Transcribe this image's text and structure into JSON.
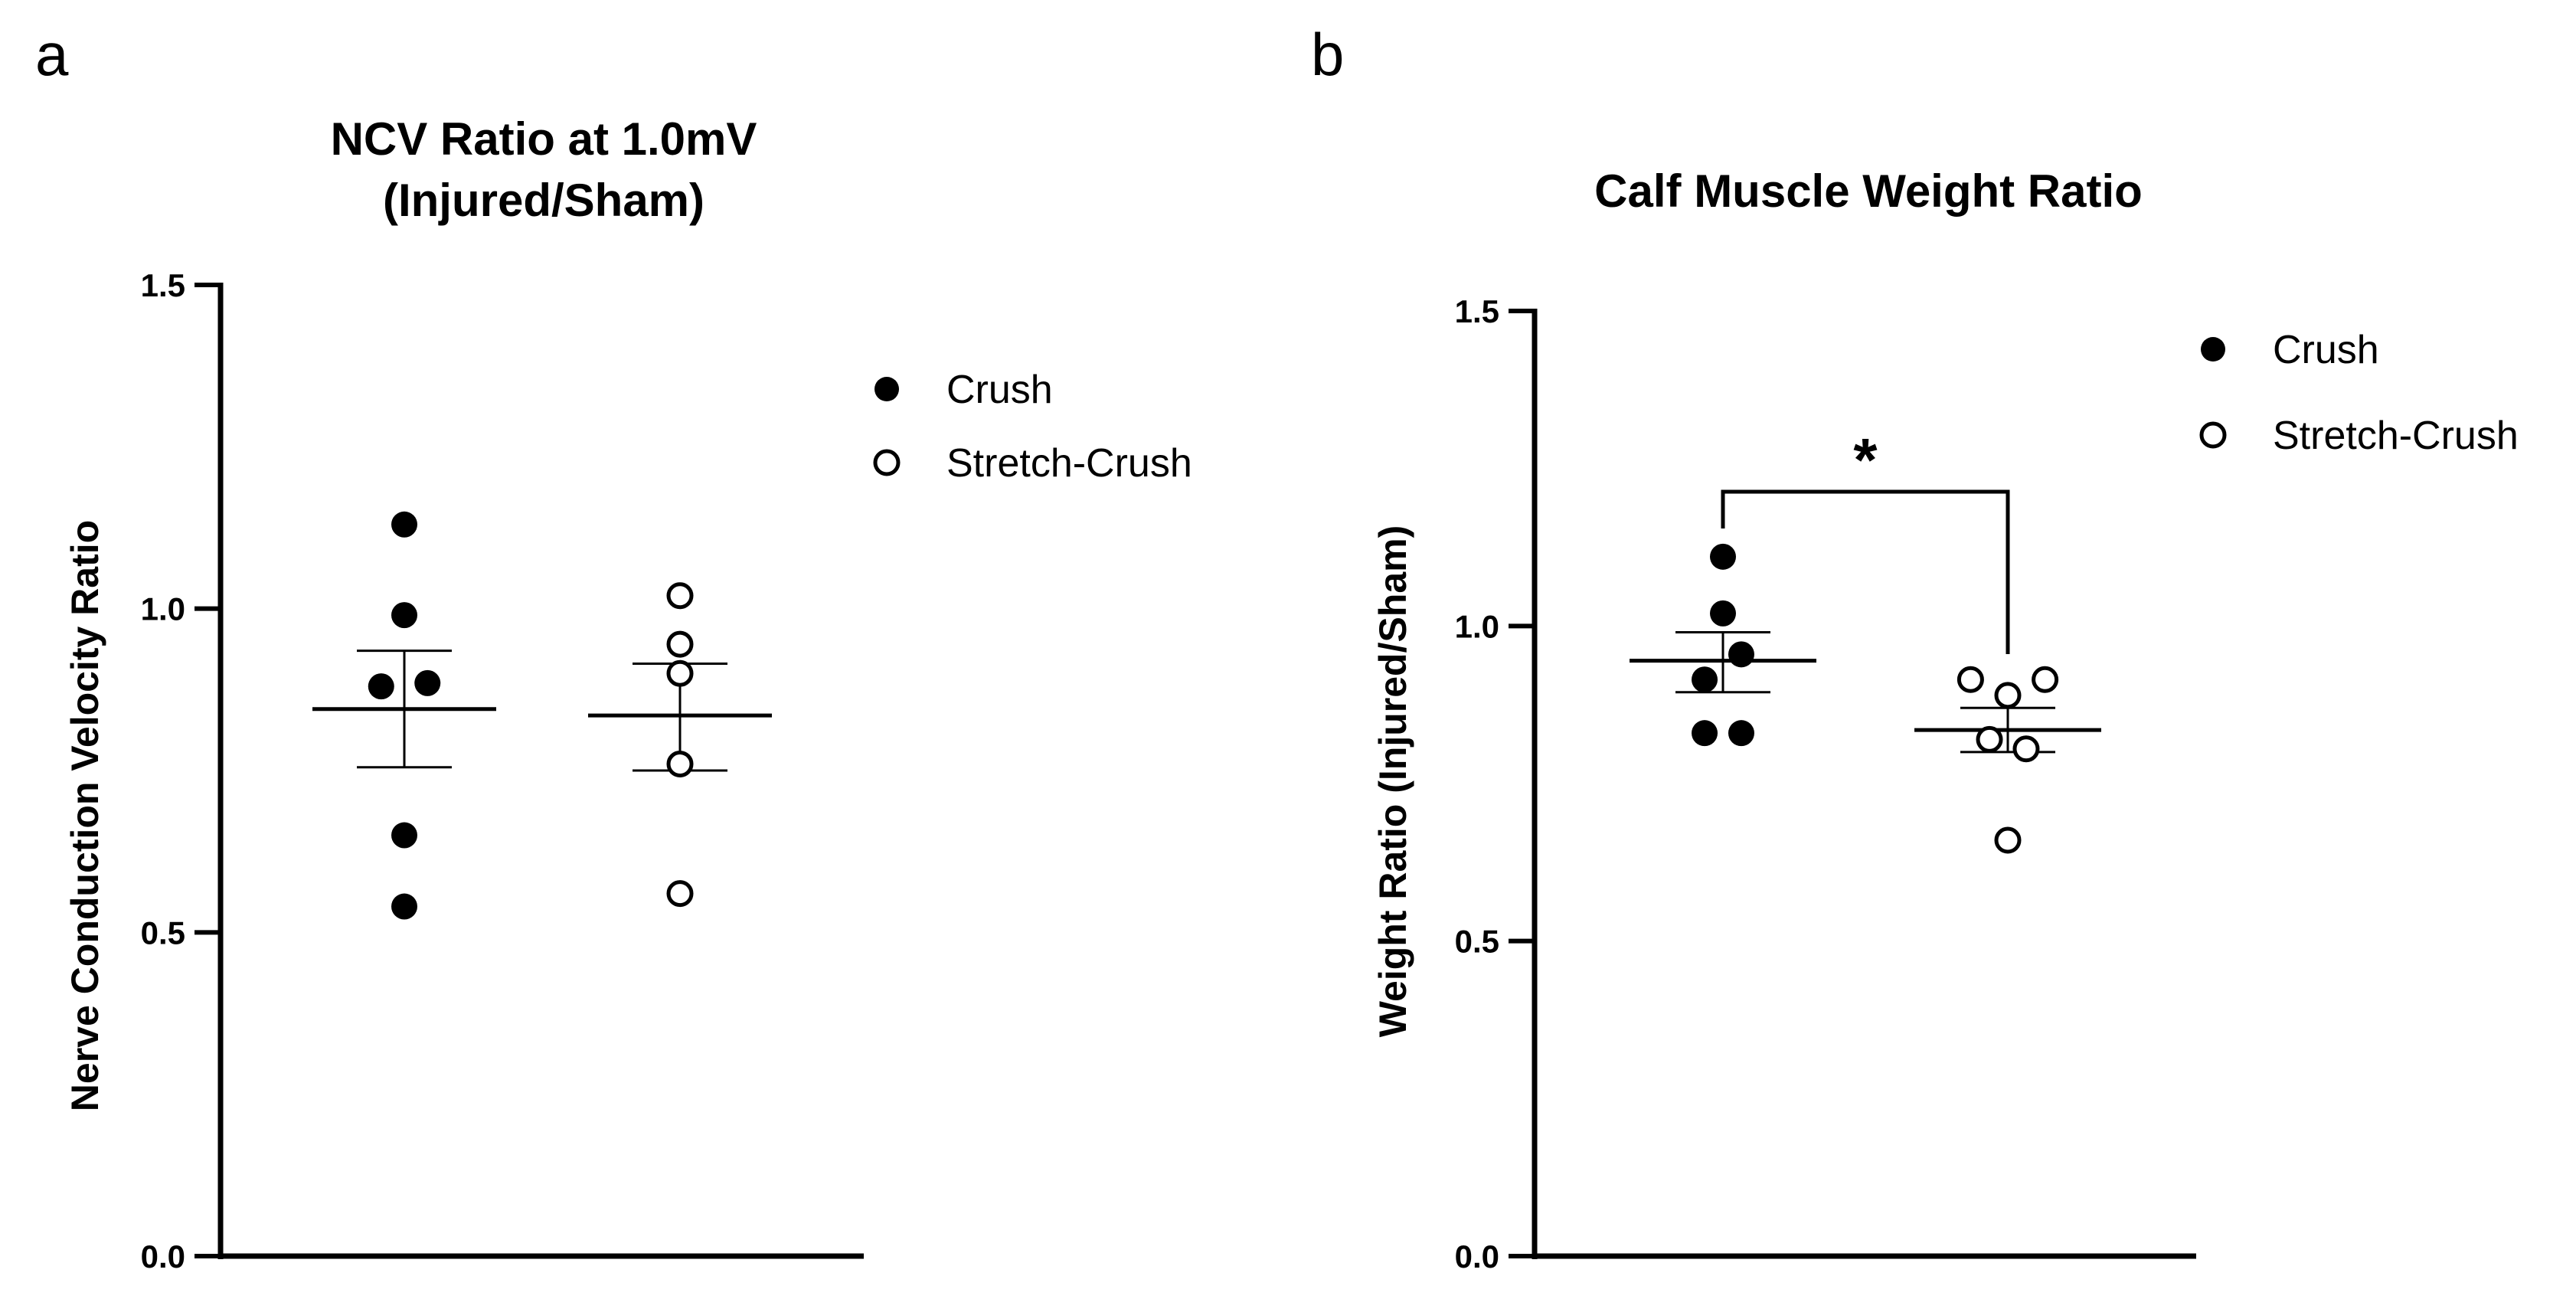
{
  "panels": [
    {
      "letter": "a"
    },
    {
      "letter": "b"
    }
  ],
  "chart_data": [
    {
      "type": "scatter",
      "title_lines": [
        "NCV Ratio at 1.0mV",
        "(Injured/Sham)"
      ],
      "xlabel": "",
      "ylabel": "Nerve Conduction Velocity Ratio",
      "ylim": [
        0,
        1.5
      ],
      "yticks": [
        {
          "value": 0.0,
          "label": "0.0"
        },
        {
          "value": 0.5,
          "label": "0.5"
        },
        {
          "value": 1.0,
          "label": "1.0"
        },
        {
          "value": 1.5,
          "label": "1.5"
        }
      ],
      "grid": false,
      "legend_position": "top-right",
      "series": [
        {
          "name": "Crush",
          "marker": "filled-circle",
          "color": "#000000",
          "mean": 0.845,
          "sem_low": 0.755,
          "sem_high": 0.935,
          "points": [
            {
              "value": 1.13,
              "offset": 0
            },
            {
              "value": 0.99,
              "offset": 0
            },
            {
              "value": 0.88,
              "offset": -0.35
            },
            {
              "value": 0.885,
              "offset": 0.35
            },
            {
              "value": 0.65,
              "offset": 0
            },
            {
              "value": 0.54,
              "offset": 0
            }
          ]
        },
        {
          "name": "Stretch-Crush",
          "marker": "open-circle",
          "color": "#000000",
          "mean": 0.835,
          "sem_low": 0.75,
          "sem_high": 0.915,
          "points": [
            {
              "value": 1.02,
              "offset": 0
            },
            {
              "value": 0.945,
              "offset": 0
            },
            {
              "value": 0.9,
              "offset": 0
            },
            {
              "value": 0.76,
              "offset": 0
            },
            {
              "value": 0.56,
              "offset": 0
            }
          ]
        }
      ],
      "annotations": []
    },
    {
      "type": "scatter",
      "title_lines": [
        "Calf Muscle Weight Ratio"
      ],
      "xlabel": "",
      "ylabel": "Weight Ratio (Injured/Sham)",
      "ylim": [
        0,
        1.5
      ],
      "yticks": [
        {
          "value": 0.0,
          "label": "0.0"
        },
        {
          "value": 0.5,
          "label": "0.5"
        },
        {
          "value": 1.0,
          "label": "1.0"
        },
        {
          "value": 1.5,
          "label": "1.5"
        }
      ],
      "grid": false,
      "legend_position": "top-right",
      "series": [
        {
          "name": "Crush",
          "marker": "filled-circle",
          "color": "#000000",
          "mean": 0.945,
          "sem_low": 0.895,
          "sem_high": 0.99,
          "points": [
            {
              "value": 1.11,
              "offset": 0
            },
            {
              "value": 1.02,
              "offset": 0
            },
            {
              "value": 0.955,
              "offset": 0.37
            },
            {
              "value": 0.915,
              "offset": -0.37
            },
            {
              "value": 0.83,
              "offset": -0.37
            },
            {
              "value": 0.83,
              "offset": 0.37
            }
          ]
        },
        {
          "name": "Stretch-Crush",
          "marker": "open-circle",
          "color": "#000000",
          "mean": 0.835,
          "sem_low": 0.8,
          "sem_high": 0.87,
          "points": [
            {
              "value": 0.915,
              "offset": -0.75
            },
            {
              "value": 0.915,
              "offset": 0.75
            },
            {
              "value": 0.89,
              "offset": 0
            },
            {
              "value": 0.82,
              "offset": -0.37
            },
            {
              "value": 0.805,
              "offset": 0.37
            },
            {
              "value": 0.66,
              "offset": 0
            }
          ]
        }
      ],
      "annotations": [
        {
          "type": "significance-bracket",
          "from_series": 0,
          "to_series": 1,
          "label": "*"
        }
      ]
    }
  ]
}
